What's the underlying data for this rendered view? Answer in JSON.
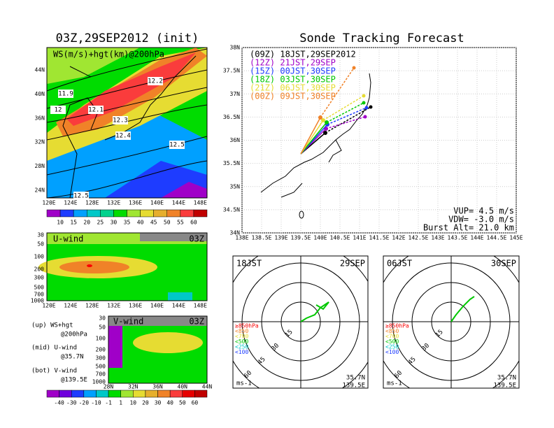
{
  "left": {
    "title": "03Z,29SEP2012 (init)",
    "map": {
      "label": "WS(m/s)+hgt(km)@200hPa",
      "yticks": [
        "44N",
        "40N",
        "36N",
        "32N",
        "28N",
        "24N"
      ],
      "xticks": [
        "120E",
        "124E",
        "128E",
        "132E",
        "136E",
        "140E",
        "144E",
        "148E"
      ],
      "contour_labels": [
        "12.2",
        "11.9",
        "12",
        "12.1",
        "12.3",
        "12.4",
        "12.5",
        "12.5"
      ]
    },
    "colorbar_top": {
      "labels": [
        "10",
        "15",
        "20",
        "25",
        "30",
        "35",
        "40",
        "45",
        "50",
        "55",
        "60"
      ],
      "colors": [
        "#a000c8",
        "#1e3cff",
        "#00a0ff",
        "#00c8c8",
        "#00d28c",
        "#00dc00",
        "#a0e632",
        "#e6dc32",
        "#e6af2d",
        "#f08228",
        "#fa3c3c",
        "#c00000"
      ]
    },
    "u_wind": {
      "label": "U-wind",
      "time": "03Z",
      "yticks": [
        "30",
        "50",
        "100",
        "200",
        "300",
        "500",
        "700",
        "1000"
      ],
      "xticks": [
        "120E",
        "124E",
        "128E",
        "132E",
        "136E",
        "140E",
        "144E",
        "148E"
      ]
    },
    "v_wind": {
      "label": "V-wind",
      "time": "03Z",
      "yticks": [
        "30",
        "50",
        "100",
        "200",
        "300",
        "500",
        "700",
        "1000"
      ],
      "xticks": [
        "28N",
        "32N",
        "36N",
        "40N",
        "44N"
      ]
    },
    "notes": [
      "(up) WS+hgt",
      "@200hPa",
      "(mid) U-wind",
      "@35.7N",
      "(bot) V-wind",
      "@139.5E"
    ],
    "colorbar_bottom": {
      "labels": [
        "-40",
        "-30",
        "-20",
        "-10",
        "-1",
        "1",
        "10",
        "20",
        "30",
        "40",
        "50",
        "60"
      ],
      "colors": [
        "#a000c8",
        "#6e00dc",
        "#1e3cff",
        "#00a0ff",
        "#00c8c8",
        "#00dc00",
        "#a0e632",
        "#e6dc32",
        "#e6af2d",
        "#f08228",
        "#fa3c3c",
        "#e60000",
        "#c00000"
      ]
    }
  },
  "right": {
    "title": "Sonde Tracking Forecast",
    "legend": [
      {
        "text": "(09Z) 18JST,29SEP2012",
        "color": "#000000"
      },
      {
        "text": "(12Z) 21JST,29SEP",
        "color": "#a000c8"
      },
      {
        "text": "(15Z) 00JST,30SEP",
        "color": "#1e3cff"
      },
      {
        "text": "(18Z) 03JST,30SEP",
        "color": "#00c800"
      },
      {
        "text": "(21Z) 06JST,30SEP",
        "color": "#e6dc32"
      },
      {
        "text": "(00Z) 09JST,30SEP",
        "color": "#f08228"
      }
    ],
    "yticks": [
      "38N",
      "37.5N",
      "37N",
      "36.5N",
      "36N",
      "35.5N",
      "35N",
      "34.5N",
      "34N"
    ],
    "xticks": [
      "138E",
      "138.5E",
      "139E",
      "139.5E",
      "140E",
      "140.5E",
      "141E",
      "141.5E",
      "142E",
      "142.5E",
      "143E",
      "143.5E",
      "144E",
      "144.5E",
      "145E"
    ],
    "params": [
      "VUP= 4.5 m/s",
      "VDW= -3.0 m/s",
      "Burst Alt= 21.0 km"
    ],
    "hodographs": [
      {
        "time": "18JST",
        "date": "29SEP",
        "rings": [
          "15",
          "30",
          "45",
          "60"
        ],
        "levels": [
          {
            "text": "≥850hPa",
            "color": "#fa0000"
          },
          {
            "text": "<850",
            "color": "#f08228"
          },
          {
            "text": "<700",
            "color": "#e6dc32"
          },
          {
            "text": "<500",
            "color": "#00c800"
          },
          {
            "text": "<250",
            "color": "#00c8c8"
          },
          {
            "text": "<100",
            "color": "#1e3cff"
          }
        ],
        "unit": "ms-1",
        "lat": "35.7N",
        "lon": "139.5E"
      },
      {
        "time": "06JST",
        "date": "30SEP",
        "rings": [
          "15",
          "30",
          "45",
          "60"
        ],
        "levels": [
          {
            "text": "≥850hPa",
            "color": "#fa0000"
          },
          {
            "text": "<850",
            "color": "#f08228"
          },
          {
            "text": "<700",
            "color": "#e6dc32"
          },
          {
            "text": "<500",
            "color": "#00c800"
          },
          {
            "text": "<250",
            "color": "#00c8c8"
          },
          {
            "text": "<100",
            "color": "#1e3cff"
          }
        ],
        "unit": "ms-1",
        "lat": "35.7N",
        "lon": "139.5E"
      }
    ]
  }
}
